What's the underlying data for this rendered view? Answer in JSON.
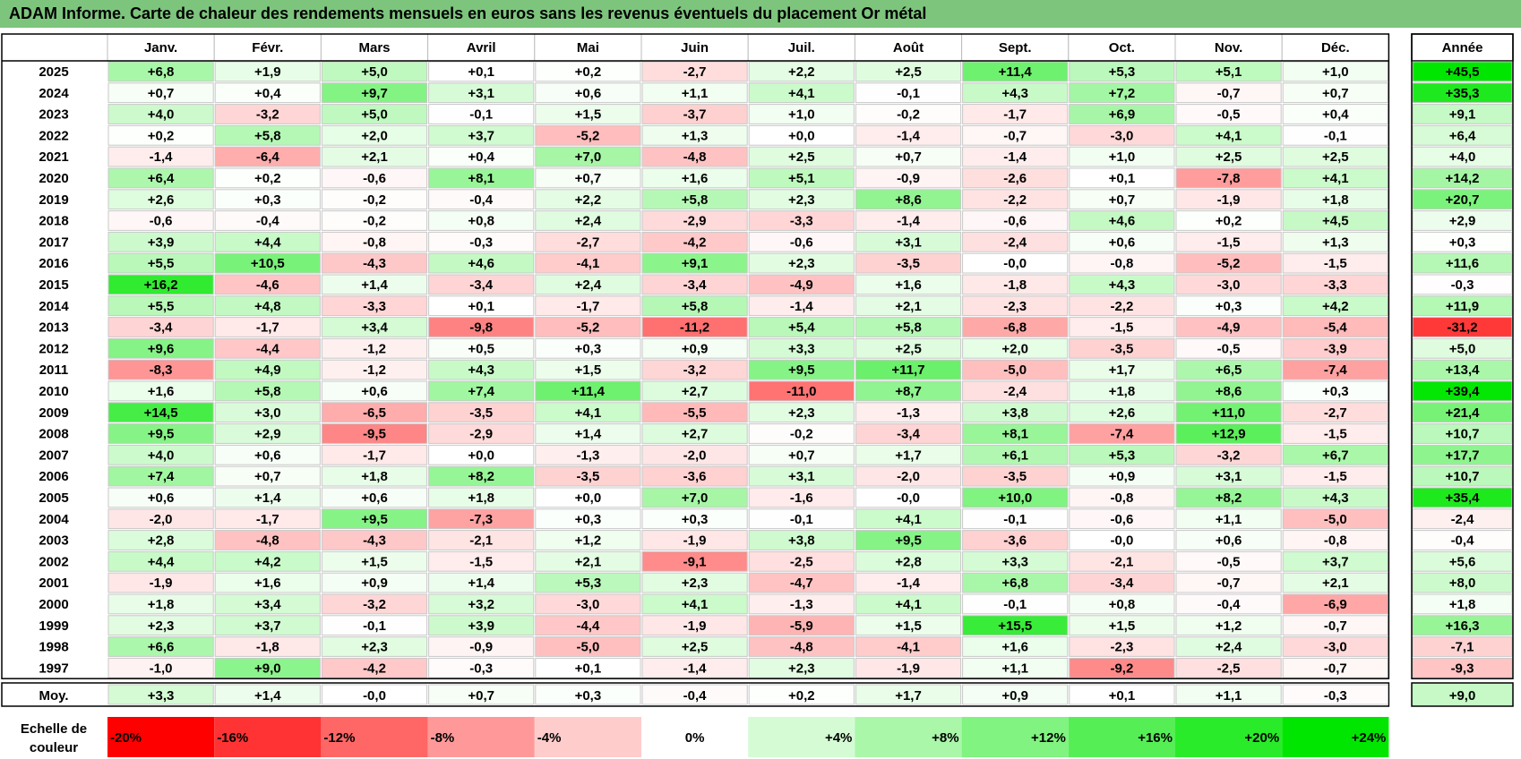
{
  "title": "ADAM Informe. Carte de chaleur des rendements mensuels en euros sans les revenus éventuels du placement Or métal",
  "chart_data": {
    "type": "heatmap",
    "title": "ADAM Informe. Carte de chaleur des rendements mensuels en euros sans les revenus éventuels du placement Or métal",
    "months": [
      "Janv.",
      "Févr.",
      "Mars",
      "Avril",
      "Mai",
      "Juin",
      "Juil.",
      "Août",
      "Sept.",
      "Oct.",
      "Nov.",
      "Déc."
    ],
    "annual_header": "Année",
    "rows": [
      {
        "year": "2025",
        "values": [
          "+6,8",
          "+1,9",
          "+5,0",
          "+0,1",
          "+0,2",
          "-2,7",
          "+2,2",
          "+2,5",
          "+11,4",
          "+5,3",
          "+5,1",
          "+1,0"
        ],
        "annual": "+45,5"
      },
      {
        "year": "2024",
        "values": [
          "+0,7",
          "+0,4",
          "+9,7",
          "+3,1",
          "+0,6",
          "+1,1",
          "+4,1",
          "-0,1",
          "+4,3",
          "+7,2",
          "-0,7",
          "+0,7"
        ],
        "annual": "+35,3"
      },
      {
        "year": "2023",
        "values": [
          "+4,0",
          "-3,2",
          "+5,0",
          "-0,1",
          "+1,5",
          "-3,7",
          "+1,0",
          "-0,2",
          "-1,7",
          "+6,9",
          "-0,5",
          "+0,4"
        ],
        "annual": "+9,1"
      },
      {
        "year": "2022",
        "values": [
          "+0,2",
          "+5,8",
          "+2,0",
          "+3,7",
          "-5,2",
          "+1,3",
          "+0,0",
          "-1,4",
          "-0,7",
          "-3,0",
          "+4,1",
          "-0,1"
        ],
        "annual": "+6,4"
      },
      {
        "year": "2021",
        "values": [
          "-1,4",
          "-6,4",
          "+2,1",
          "+0,4",
          "+7,0",
          "-4,8",
          "+2,5",
          "+0,7",
          "-1,4",
          "+1,0",
          "+2,5",
          "+2,5"
        ],
        "annual": "+4,0"
      },
      {
        "year": "2020",
        "values": [
          "+6,4",
          "+0,2",
          "-0,6",
          "+8,1",
          "+0,7",
          "+1,6",
          "+5,1",
          "-0,9",
          "-2,6",
          "+0,1",
          "-7,8",
          "+4,1"
        ],
        "annual": "+14,2"
      },
      {
        "year": "2019",
        "values": [
          "+2,6",
          "+0,3",
          "-0,2",
          "-0,4",
          "+2,2",
          "+5,8",
          "+2,3",
          "+8,6",
          "-2,2",
          "+0,7",
          "-1,9",
          "+1,8"
        ],
        "annual": "+20,7"
      },
      {
        "year": "2018",
        "values": [
          "-0,6",
          "-0,4",
          "-0,2",
          "+0,8",
          "+2,4",
          "-2,9",
          "-3,3",
          "-1,4",
          "-0,6",
          "+4,6",
          "+0,2",
          "+4,5"
        ],
        "annual": "+2,9"
      },
      {
        "year": "2017",
        "values": [
          "+3,9",
          "+4,4",
          "-0,8",
          "-0,3",
          "-2,7",
          "-4,2",
          "-0,6",
          "+3,1",
          "-2,4",
          "+0,6",
          "-1,5",
          "+1,3"
        ],
        "annual": "+0,3"
      },
      {
        "year": "2016",
        "values": [
          "+5,5",
          "+10,5",
          "-4,3",
          "+4,6",
          "-4,1",
          "+9,1",
          "+2,3",
          "-3,5",
          "-0,0",
          "-0,8",
          "-5,2",
          "-1,5"
        ],
        "annual": "+11,6"
      },
      {
        "year": "2015",
        "values": [
          "+16,2",
          "-4,6",
          "+1,4",
          "-3,4",
          "+2,4",
          "-3,4",
          "-4,9",
          "+1,6",
          "-1,8",
          "+4,3",
          "-3,0",
          "-3,3"
        ],
        "annual": "-0,3"
      },
      {
        "year": "2014",
        "values": [
          "+5,5",
          "+4,8",
          "-3,3",
          "+0,1",
          "-1,7",
          "+5,8",
          "-1,4",
          "+2,1",
          "-2,3",
          "-2,2",
          "+0,3",
          "+4,2"
        ],
        "annual": "+11,9"
      },
      {
        "year": "2013",
        "values": [
          "-3,4",
          "-1,7",
          "+3,4",
          "-9,8",
          "-5,2",
          "-11,2",
          "+5,4",
          "+5,8",
          "-6,8",
          "-1,5",
          "-4,9",
          "-5,4"
        ],
        "annual": "-31,2"
      },
      {
        "year": "2012",
        "values": [
          "+9,6",
          "-4,4",
          "-1,2",
          "+0,5",
          "+0,3",
          "+0,9",
          "+3,3",
          "+2,5",
          "+2,0",
          "-3,5",
          "-0,5",
          "-3,9"
        ],
        "annual": "+5,0"
      },
      {
        "year": "2011",
        "values": [
          "-8,3",
          "+4,9",
          "-1,2",
          "+4,3",
          "+1,5",
          "-3,2",
          "+9,5",
          "+11,7",
          "-5,0",
          "+1,7",
          "+6,5",
          "-7,4"
        ],
        "annual": "+13,4"
      },
      {
        "year": "2010",
        "values": [
          "+1,6",
          "+5,8",
          "+0,6",
          "+7,4",
          "+11,4",
          "+2,7",
          "-11,0",
          "+8,7",
          "-2,4",
          "+1,8",
          "+8,6",
          "+0,3"
        ],
        "annual": "+39,4"
      },
      {
        "year": "2009",
        "values": [
          "+14,5",
          "+3,0",
          "-6,5",
          "-3,5",
          "+4,1",
          "-5,5",
          "+2,3",
          "-1,3",
          "+3,8",
          "+2,6",
          "+11,0",
          "-2,7"
        ],
        "annual": "+21,4"
      },
      {
        "year": "2008",
        "values": [
          "+9,5",
          "+2,9",
          "-9,5",
          "-2,9",
          "+1,4",
          "+2,7",
          "-0,2",
          "-3,4",
          "+8,1",
          "-7,4",
          "+12,9",
          "-1,5"
        ],
        "annual": "+10,7"
      },
      {
        "year": "2007",
        "values": [
          "+4,0",
          "+0,6",
          "-1,7",
          "+0,0",
          "-1,3",
          "-2,0",
          "+0,7",
          "+1,7",
          "+6,1",
          "+5,3",
          "-3,2",
          "+6,7"
        ],
        "annual": "+17,7"
      },
      {
        "year": "2006",
        "values": [
          "+7,4",
          "+0,7",
          "+1,8",
          "+8,2",
          "-3,5",
          "-3,6",
          "+3,1",
          "-2,0",
          "-3,5",
          "+0,9",
          "+3,1",
          "-1,5"
        ],
        "annual": "+10,7"
      },
      {
        "year": "2005",
        "values": [
          "+0,6",
          "+1,4",
          "+0,6",
          "+1,8",
          "+0,0",
          "+7,0",
          "-1,6",
          "-0,0",
          "+10,0",
          "-0,8",
          "+8,2",
          "+4,3"
        ],
        "annual": "+35,4"
      },
      {
        "year": "2004",
        "values": [
          "-2,0",
          "-1,7",
          "+9,5",
          "-7,3",
          "+0,3",
          "+0,3",
          "-0,1",
          "+4,1",
          "-0,1",
          "-0,6",
          "+1,1",
          "-5,0"
        ],
        "annual": "-2,4"
      },
      {
        "year": "2003",
        "values": [
          "+2,8",
          "-4,8",
          "-4,3",
          "-2,1",
          "+1,2",
          "-1,9",
          "+3,8",
          "+9,5",
          "-3,6",
          "-0,0",
          "+0,6",
          "-0,8"
        ],
        "annual": "-0,4"
      },
      {
        "year": "2002",
        "values": [
          "+4,4",
          "+4,2",
          "+1,5",
          "-1,5",
          "+2,1",
          "-9,1",
          "-2,5",
          "+2,8",
          "+3,3",
          "-2,1",
          "-0,5",
          "+3,7"
        ],
        "annual": "+5,6"
      },
      {
        "year": "2001",
        "values": [
          "-1,9",
          "+1,6",
          "+0,9",
          "+1,4",
          "+5,3",
          "+2,3",
          "-4,7",
          "-1,4",
          "+6,8",
          "-3,4",
          "-0,7",
          "+2,1"
        ],
        "annual": "+8,0"
      },
      {
        "year": "2000",
        "values": [
          "+1,8",
          "+3,4",
          "-3,2",
          "+3,2",
          "-3,0",
          "+4,1",
          "-1,3",
          "+4,1",
          "-0,1",
          "+0,8",
          "-0,4",
          "-6,9"
        ],
        "annual": "+1,8"
      },
      {
        "year": "1999",
        "values": [
          "+2,3",
          "+3,7",
          "-0,1",
          "+3,9",
          "-4,4",
          "-1,9",
          "-5,9",
          "+1,5",
          "+15,5",
          "+1,5",
          "+1,2",
          "-0,7"
        ],
        "annual": "+16,3"
      },
      {
        "year": "1998",
        "values": [
          "+6,6",
          "-1,8",
          "+2,3",
          "-0,9",
          "-5,0",
          "+2,5",
          "-4,8",
          "-4,1",
          "+1,6",
          "-2,3",
          "+2,4",
          "-3,0"
        ],
        "annual": "-7,1"
      },
      {
        "year": "1997",
        "values": [
          "-1,0",
          "+9,0",
          "-4,2",
          "-0,3",
          "+0,1",
          "-1,4",
          "+2,3",
          "-1,9",
          "+1,1",
          "-9,2",
          "-2,5",
          "-0,7"
        ],
        "annual": "-9,3"
      }
    ],
    "average": {
      "label": "Moy.",
      "values": [
        "+3,3",
        "+1,4",
        "-0,0",
        "+0,7",
        "+0,3",
        "-0,4",
        "+0,2",
        "+1,7",
        "+0,9",
        "+0,1",
        "+1,1",
        "-0,3"
      ],
      "annual": "+9,0"
    },
    "scale": {
      "label_line1": "Echelle de",
      "label_line2": "couleur",
      "stops": [
        {
          "label": "-20%",
          "value": -20,
          "color": "#ff0000"
        },
        {
          "label": "-16%",
          "value": -16,
          "color": "#ff3333"
        },
        {
          "label": "-12%",
          "value": -12,
          "color": "#ff6666"
        },
        {
          "label": "-8%",
          "value": -8,
          "color": "#ff9999"
        },
        {
          "label": "-4%",
          "value": -4,
          "color": "#ffcccc"
        },
        {
          "label": "0%",
          "value": 0,
          "color": "#ffffff"
        },
        {
          "label": "+4%",
          "value": 4,
          "color": "#d5fbd5"
        },
        {
          "label": "+8%",
          "value": 8,
          "color": "#aaf7aa"
        },
        {
          "label": "+12%",
          "value": 12,
          "color": "#80f380"
        },
        {
          "label": "+16%",
          "value": 16,
          "color": "#55ef55"
        },
        {
          "label": "+20%",
          "value": 20,
          "color": "#2aeb2a"
        },
        {
          "label": "+24%",
          "value": 24,
          "color": "#00e600"
        }
      ]
    }
  }
}
